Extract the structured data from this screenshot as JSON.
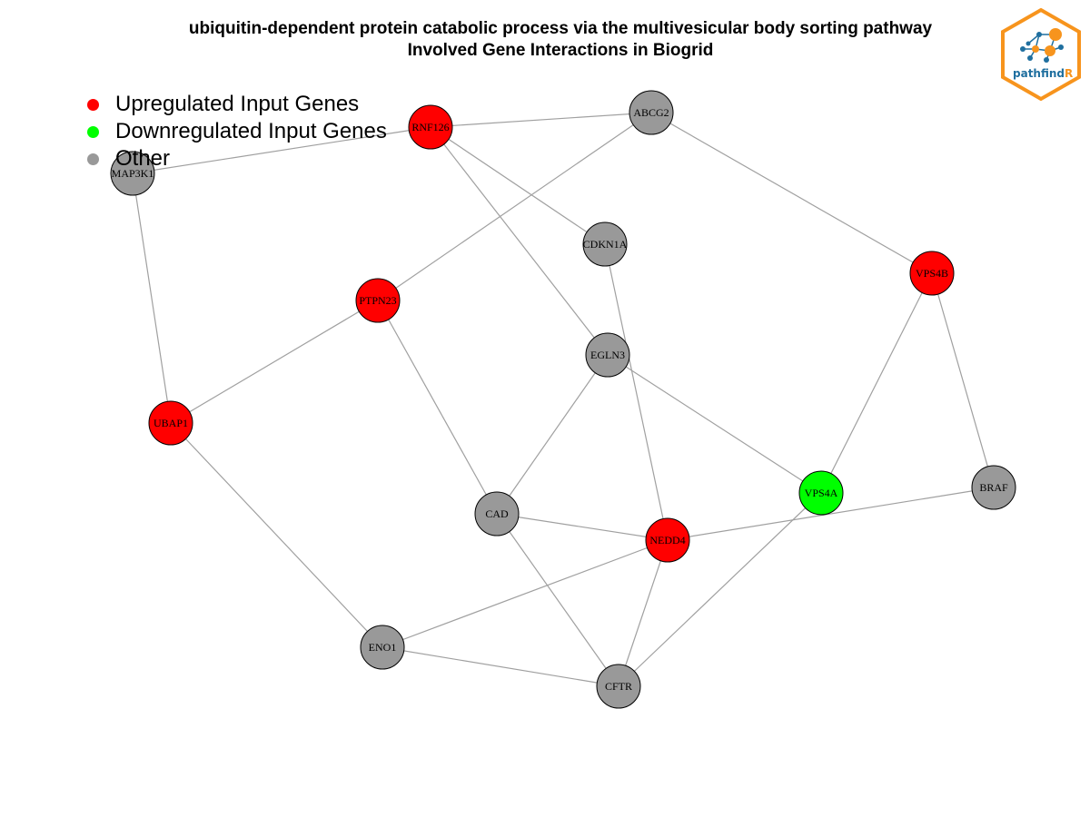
{
  "title": {
    "line1": "ubiquitin-dependent protein catabolic process via the multivesicular body sorting pathway",
    "line2": "Involved Gene Interactions in Biogrid"
  },
  "legend": {
    "items": [
      {
        "label": "Upregulated Input Genes",
        "color": "#ff0000"
      },
      {
        "label": "Downregulated Input Genes",
        "color": "#00ff00"
      },
      {
        "label": "Other",
        "color": "#999999"
      }
    ]
  },
  "colors": {
    "up": "#ff0000",
    "down": "#00ff00",
    "other": "#999999",
    "edge": "#a0a0a0",
    "logo_orange": "#f7941d",
    "logo_blue": "#1f6f9f"
  },
  "logo": {
    "text": "pathfind",
    "text_accent": "R"
  },
  "nodes": [
    {
      "id": "RNF126",
      "status": "up"
    },
    {
      "id": "ABCG2",
      "status": "other"
    },
    {
      "id": "MAP3K1",
      "status": "other"
    },
    {
      "id": "CDKN1A",
      "status": "other"
    },
    {
      "id": "VPS4B",
      "status": "up"
    },
    {
      "id": "PTPN23",
      "status": "up"
    },
    {
      "id": "EGLN3",
      "status": "other"
    },
    {
      "id": "UBAP1",
      "status": "up"
    },
    {
      "id": "CAD",
      "status": "other"
    },
    {
      "id": "VPS4A",
      "status": "down"
    },
    {
      "id": "BRAF",
      "status": "other"
    },
    {
      "id": "NEDD4",
      "status": "up"
    },
    {
      "id": "ENO1",
      "status": "other"
    },
    {
      "id": "CFTR",
      "status": "other"
    }
  ],
  "edges": [
    [
      "RNF126",
      "ABCG2"
    ],
    [
      "RNF126",
      "MAP3K1"
    ],
    [
      "RNF126",
      "CDKN1A"
    ],
    [
      "RNF126",
      "EGLN3"
    ],
    [
      "ABCG2",
      "PTPN23"
    ],
    [
      "ABCG2",
      "VPS4B"
    ],
    [
      "MAP3K1",
      "UBAP1"
    ],
    [
      "CDKN1A",
      "NEDD4"
    ],
    [
      "PTPN23",
      "UBAP1"
    ],
    [
      "PTPN23",
      "CAD"
    ],
    [
      "EGLN3",
      "CAD"
    ],
    [
      "EGLN3",
      "VPS4A"
    ],
    [
      "VPS4B",
      "VPS4A"
    ],
    [
      "VPS4B",
      "BRAF"
    ],
    [
      "UBAP1",
      "ENO1"
    ],
    [
      "CAD",
      "NEDD4"
    ],
    [
      "CAD",
      "CFTR"
    ],
    [
      "NEDD4",
      "BRAF"
    ],
    [
      "NEDD4",
      "ENO1"
    ],
    [
      "NEDD4",
      "CFTR"
    ],
    [
      "VPS4A",
      "CFTR"
    ],
    [
      "ENO1",
      "CFTR"
    ]
  ]
}
